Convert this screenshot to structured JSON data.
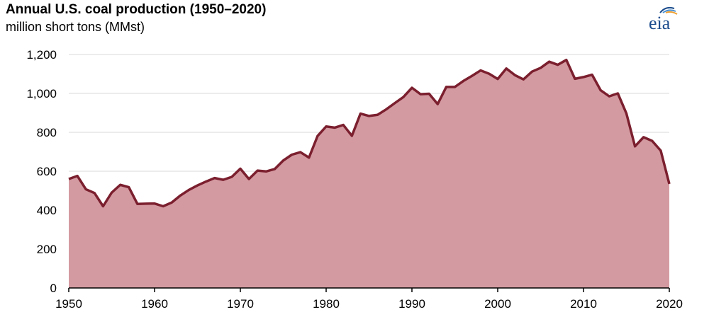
{
  "header": {
    "title": "Annual U.S. coal production (1950–2020)",
    "subtitle": "million short tons (MMst)"
  },
  "logo": {
    "text": "eia",
    "icon": "eia-logo-icon"
  },
  "colors": {
    "fill": "#d49aa1",
    "line": "#7b1f2e",
    "grid": "#d9d9d9",
    "axis": "#000000"
  },
  "chart_data": {
    "type": "area",
    "x": [
      1950,
      1951,
      1952,
      1953,
      1954,
      1955,
      1956,
      1957,
      1958,
      1959,
      1960,
      1961,
      1962,
      1963,
      1964,
      1965,
      1966,
      1967,
      1968,
      1969,
      1970,
      1971,
      1972,
      1973,
      1974,
      1975,
      1976,
      1977,
      1978,
      1979,
      1980,
      1981,
      1982,
      1983,
      1984,
      1985,
      1986,
      1987,
      1988,
      1989,
      1990,
      1991,
      1992,
      1993,
      1994,
      1995,
      1996,
      1997,
      1998,
      1999,
      2000,
      2001,
      2002,
      2003,
      2004,
      2005,
      2006,
      2007,
      2008,
      2009,
      2010,
      2011,
      2012,
      2013,
      2014,
      2015,
      2016,
      2017,
      2018,
      2019,
      2020
    ],
    "series": [
      {
        "values": [
          560,
          576,
          507,
          488,
          420,
          490,
          530,
          518,
          432,
          433,
          434,
          420,
          439,
          475,
          504,
          527,
          547,
          565,
          556,
          571,
          613,
          560,
          603,
          599,
          611,
          655,
          685,
          698,
          670,
          781,
          830,
          824,
          838,
          782,
          896,
          884,
          890,
          918,
          950,
          981,
          1029,
          996,
          998,
          945,
          1033,
          1033,
          1064,
          1090,
          1118,
          1101,
          1074,
          1128,
          1094,
          1072,
          1112,
          1131,
          1163,
          1147,
          1172,
          1075,
          1084,
          1096,
          1016,
          985,
          1000,
          897,
          728,
          775,
          756,
          706,
          535
        ]
      }
    ],
    "x_ticks": [
      1950,
      1960,
      1970,
      1980,
      1990,
      2000,
      2010,
      2020
    ],
    "y_ticks": [
      0,
      200,
      400,
      600,
      800,
      1000,
      1200
    ],
    "y_tick_labels": [
      "0",
      "200",
      "400",
      "600",
      "800",
      "1,000",
      "1,200"
    ],
    "xlim": [
      1950,
      2020
    ],
    "ylim": [
      0,
      1200
    ],
    "grid": true
  }
}
